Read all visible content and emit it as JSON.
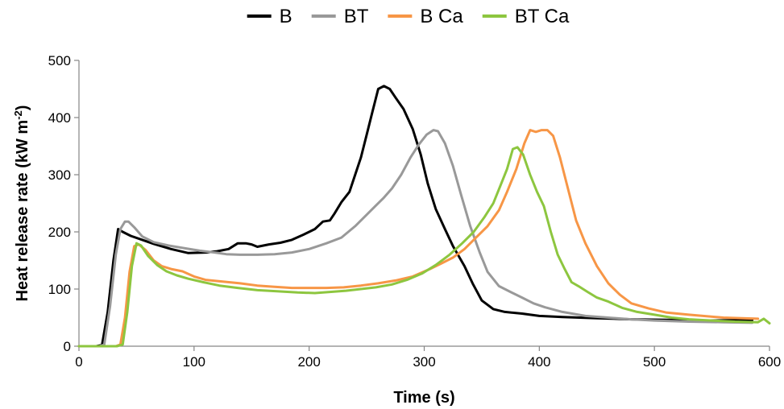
{
  "chart_data": {
    "type": "line",
    "xlabel": "Time (s)",
    "ylabel": {
      "main": "Heat release rate (kW m",
      "sup": "-2",
      "close": ")"
    },
    "xlim": [
      0,
      600
    ],
    "ylim": [
      0,
      500
    ],
    "xticks": [
      0,
      100,
      200,
      300,
      400,
      500,
      600
    ],
    "yticks": [
      0,
      100,
      200,
      300,
      400,
      500
    ],
    "grid": false,
    "legend_position": "top",
    "series": [
      {
        "name": "B",
        "color": "#000000",
        "points": [
          [
            0,
            0
          ],
          [
            15,
            0
          ],
          [
            20,
            2
          ],
          [
            25,
            60
          ],
          [
            30,
            150
          ],
          [
            34,
            205
          ],
          [
            38,
            200
          ],
          [
            45,
            193
          ],
          [
            55,
            186
          ],
          [
            65,
            179
          ],
          [
            80,
            170
          ],
          [
            95,
            163
          ],
          [
            110,
            164
          ],
          [
            120,
            166
          ],
          [
            130,
            170
          ],
          [
            138,
            180
          ],
          [
            145,
            180
          ],
          [
            150,
            178
          ],
          [
            155,
            174
          ],
          [
            165,
            178
          ],
          [
            175,
            181
          ],
          [
            185,
            186
          ],
          [
            195,
            195
          ],
          [
            205,
            205
          ],
          [
            212,
            218
          ],
          [
            218,
            220
          ],
          [
            222,
            232
          ],
          [
            228,
            252
          ],
          [
            235,
            270
          ],
          [
            240,
            300
          ],
          [
            245,
            330
          ],
          [
            250,
            370
          ],
          [
            255,
            410
          ],
          [
            260,
            450
          ],
          [
            265,
            455
          ],
          [
            270,
            450
          ],
          [
            275,
            435
          ],
          [
            282,
            415
          ],
          [
            290,
            380
          ],
          [
            297,
            335
          ],
          [
            303,
            285
          ],
          [
            310,
            240
          ],
          [
            318,
            205
          ],
          [
            325,
            175
          ],
          [
            335,
            140
          ],
          [
            342,
            110
          ],
          [
            350,
            80
          ],
          [
            360,
            65
          ],
          [
            370,
            60
          ],
          [
            385,
            57
          ],
          [
            400,
            53
          ],
          [
            420,
            51
          ],
          [
            450,
            49
          ],
          [
            480,
            47
          ],
          [
            510,
            46
          ],
          [
            550,
            45
          ],
          [
            585,
            46
          ]
        ]
      },
      {
        "name": "BT",
        "color": "#999999",
        "points": [
          [
            0,
            0
          ],
          [
            18,
            0
          ],
          [
            22,
            3
          ],
          [
            27,
            70
          ],
          [
            32,
            160
          ],
          [
            36,
            205
          ],
          [
            40,
            218
          ],
          [
            43,
            218
          ],
          [
            48,
            208
          ],
          [
            55,
            192
          ],
          [
            65,
            182
          ],
          [
            78,
            176
          ],
          [
            90,
            172
          ],
          [
            105,
            167
          ],
          [
            118,
            164
          ],
          [
            128,
            161
          ],
          [
            140,
            160
          ],
          [
            155,
            160
          ],
          [
            170,
            161
          ],
          [
            185,
            164
          ],
          [
            200,
            170
          ],
          [
            215,
            180
          ],
          [
            228,
            190
          ],
          [
            240,
            210
          ],
          [
            250,
            230
          ],
          [
            258,
            246
          ],
          [
            265,
            260
          ],
          [
            272,
            276
          ],
          [
            280,
            300
          ],
          [
            288,
            330
          ],
          [
            295,
            352
          ],
          [
            302,
            370
          ],
          [
            308,
            378
          ],
          [
            312,
            376
          ],
          [
            318,
            355
          ],
          [
            325,
            315
          ],
          [
            332,
            265
          ],
          [
            340,
            210
          ],
          [
            348,
            165
          ],
          [
            355,
            130
          ],
          [
            365,
            105
          ],
          [
            375,
            95
          ],
          [
            385,
            85
          ],
          [
            395,
            75
          ],
          [
            405,
            68
          ],
          [
            420,
            60
          ],
          [
            440,
            53
          ],
          [
            460,
            50
          ],
          [
            480,
            47
          ],
          [
            500,
            45
          ],
          [
            530,
            43
          ],
          [
            560,
            42
          ],
          [
            585,
            41
          ]
        ]
      },
      {
        "name": "B Ca",
        "color": "#F79646",
        "points": [
          [
            0,
            0
          ],
          [
            32,
            0
          ],
          [
            36,
            3
          ],
          [
            40,
            50
          ],
          [
            44,
            130
          ],
          [
            48,
            175
          ],
          [
            52,
            178
          ],
          [
            58,
            168
          ],
          [
            65,
            150
          ],
          [
            72,
            140
          ],
          [
            80,
            135
          ],
          [
            90,
            131
          ],
          [
            100,
            122
          ],
          [
            110,
            116
          ],
          [
            125,
            113
          ],
          [
            140,
            110
          ],
          [
            155,
            106
          ],
          [
            170,
            104
          ],
          [
            185,
            102
          ],
          [
            200,
            102
          ],
          [
            215,
            102
          ],
          [
            230,
            103
          ],
          [
            245,
            106
          ],
          [
            260,
            110
          ],
          [
            275,
            115
          ],
          [
            290,
            122
          ],
          [
            305,
            135
          ],
          [
            315,
            145
          ],
          [
            325,
            155
          ],
          [
            335,
            170
          ],
          [
            345,
            190
          ],
          [
            355,
            210
          ],
          [
            365,
            238
          ],
          [
            372,
            270
          ],
          [
            380,
            310
          ],
          [
            387,
            355
          ],
          [
            392,
            378
          ],
          [
            397,
            375
          ],
          [
            402,
            378
          ],
          [
            407,
            378
          ],
          [
            412,
            368
          ],
          [
            418,
            330
          ],
          [
            425,
            275
          ],
          [
            432,
            220
          ],
          [
            440,
            180
          ],
          [
            450,
            140
          ],
          [
            460,
            110
          ],
          [
            470,
            90
          ],
          [
            480,
            75
          ],
          [
            495,
            66
          ],
          [
            510,
            59
          ],
          [
            530,
            55
          ],
          [
            560,
            50
          ],
          [
            590,
            48
          ]
        ]
      },
      {
        "name": "BT Ca",
        "color": "#8DC63F",
        "points": [
          [
            0,
            0
          ],
          [
            33,
            0
          ],
          [
            38,
            3
          ],
          [
            42,
            60
          ],
          [
            46,
            140
          ],
          [
            50,
            180
          ],
          [
            54,
            176
          ],
          [
            60,
            158
          ],
          [
            68,
            142
          ],
          [
            76,
            131
          ],
          [
            85,
            124
          ],
          [
            95,
            118
          ],
          [
            108,
            112
          ],
          [
            122,
            106
          ],
          [
            138,
            102
          ],
          [
            155,
            98
          ],
          [
            172,
            96
          ],
          [
            190,
            94
          ],
          [
            205,
            93
          ],
          [
            218,
            95
          ],
          [
            232,
            97
          ],
          [
            245,
            100
          ],
          [
            258,
            103
          ],
          [
            272,
            108
          ],
          [
            285,
            116
          ],
          [
            298,
            127
          ],
          [
            310,
            142
          ],
          [
            322,
            160
          ],
          [
            333,
            180
          ],
          [
            343,
            200
          ],
          [
            352,
            225
          ],
          [
            360,
            250
          ],
          [
            366,
            280
          ],
          [
            372,
            310
          ],
          [
            377,
            345
          ],
          [
            381,
            348
          ],
          [
            386,
            335
          ],
          [
            392,
            300
          ],
          [
            398,
            270
          ],
          [
            404,
            245
          ],
          [
            410,
            200
          ],
          [
            416,
            160
          ],
          [
            422,
            135
          ],
          [
            428,
            112
          ],
          [
            434,
            105
          ],
          [
            442,
            95
          ],
          [
            450,
            85
          ],
          [
            460,
            78
          ],
          [
            472,
            67
          ],
          [
            485,
            60
          ],
          [
            500,
            55
          ],
          [
            515,
            50
          ],
          [
            530,
            47
          ],
          [
            550,
            45
          ],
          [
            570,
            43
          ],
          [
            590,
            42
          ],
          [
            595,
            48
          ],
          [
            600,
            40
          ]
        ]
      }
    ]
  }
}
